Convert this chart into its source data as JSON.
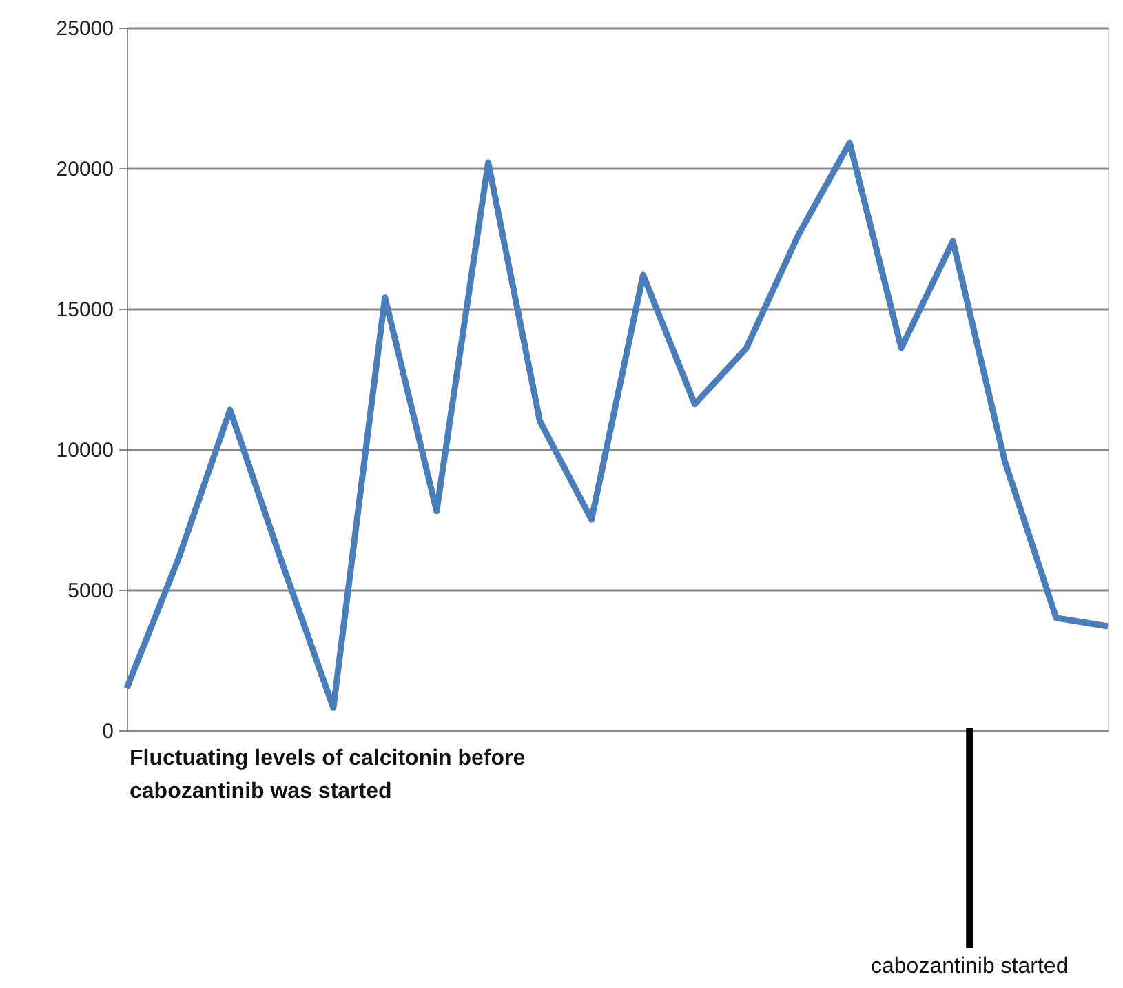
{
  "chart_data": {
    "type": "line",
    "categories": [
      null,
      null,
      null,
      null,
      null,
      null,
      null,
      null,
      null,
      null,
      null,
      null,
      null,
      null,
      null,
      null,
      null,
      null,
      null,
      null
    ],
    "series": [
      {
        "color": "#4a7ebb",
        "values": [
          1500,
          6100,
          11400,
          6000,
          800,
          15400,
          7800,
          20200,
          11000,
          7500,
          16200,
          11600,
          13600,
          17600,
          20900,
          13600,
          17400,
          9600,
          4000,
          3700
        ]
      }
    ],
    "ylim": [
      0,
      25000
    ],
    "yticks": [
      0,
      5000,
      10000,
      15000,
      20000,
      25000
    ],
    "grid": "y",
    "tick_labels": "y",
    "marker": "none",
    "line_style": "solid",
    "legend": false,
    "annotations": [
      "Fluctuating levels of calcitonin before cabozantinib was started",
      "cabozantinib started"
    ]
  }
}
